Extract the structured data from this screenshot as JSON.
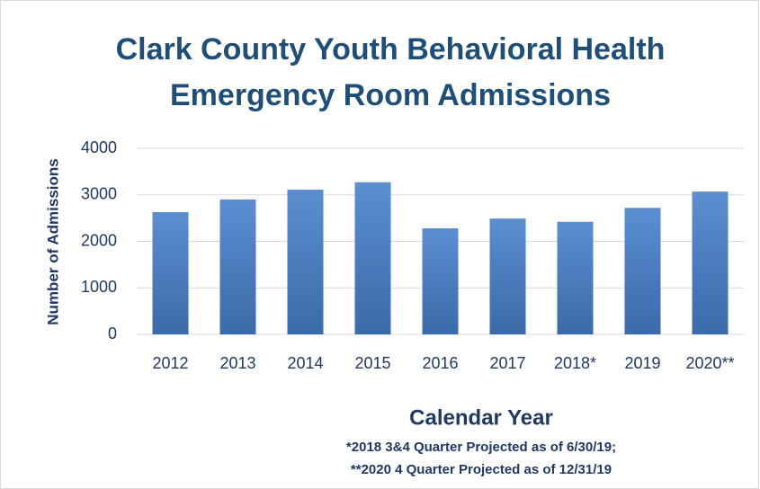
{
  "chart_data": {
    "type": "bar",
    "title_lines": [
      "Clark County Youth Behavioral Health",
      "Emergency Room Admissions"
    ],
    "x_label": "Calendar Year",
    "y_label": "Number of Admissions",
    "notes": [
      "*2018 3&4 Quarter Projected as of 6/30/19;",
      "**2020 4 Quarter Projected as of 12/31/19"
    ],
    "categories": [
      "2012",
      "2013",
      "2014",
      "2015",
      "2016",
      "2017",
      "2018*",
      "2019",
      "2020**"
    ],
    "values": [
      2630,
      2900,
      3110,
      3270,
      2280,
      2490,
      2420,
      2720,
      3070
    ],
    "color": "#4a7ebb",
    "ylim": [
      0,
      4000
    ],
    "yticks": [
      0,
      1000,
      2000,
      3000,
      4000
    ],
    "grid": true
  }
}
